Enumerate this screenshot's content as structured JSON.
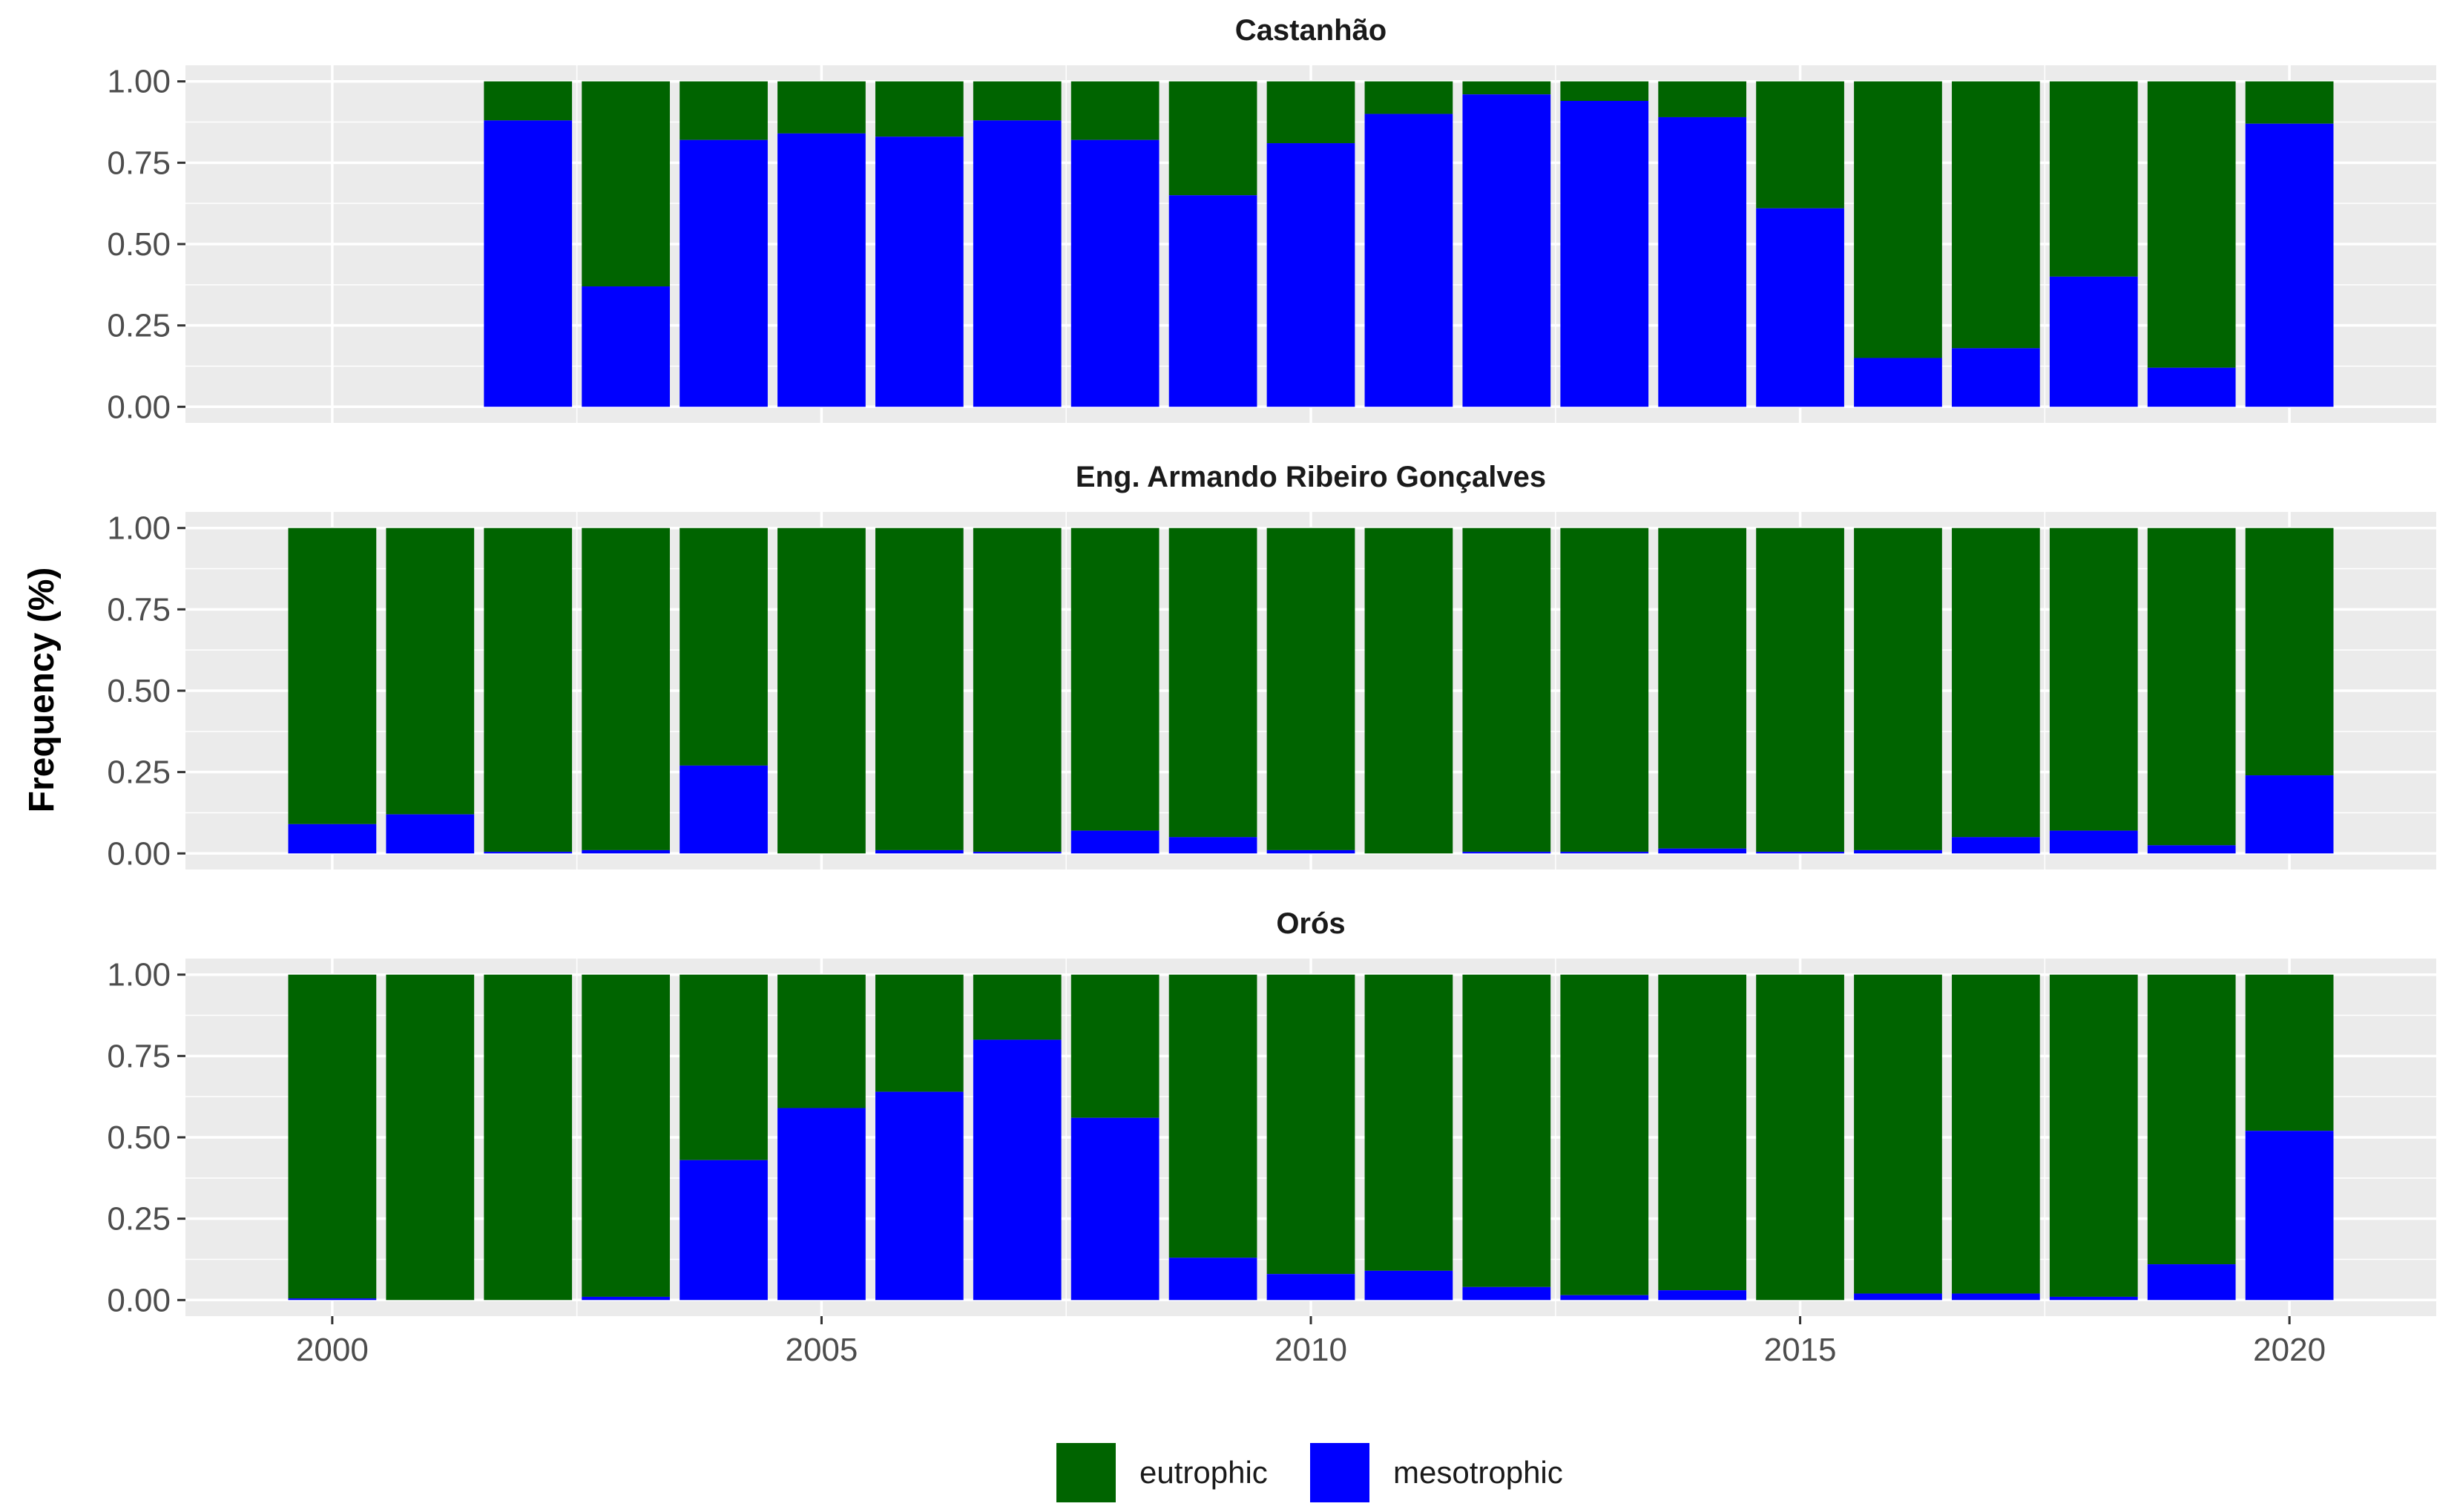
{
  "chart_data": {
    "type": "bar",
    "stacked": true,
    "ylabel": "Frequency (%)",
    "xlabel": "",
    "x_ticks": [
      2000,
      2005,
      2010,
      2015,
      2020
    ],
    "y_ticks": [
      "0.00",
      "0.25",
      "0.50",
      "0.75",
      "1.00"
    ],
    "ylim": [
      0,
      1
    ],
    "xlim": [
      1998.5,
      2021.5
    ],
    "grid": true,
    "legend_position": "bottom",
    "colors": {
      "eutrophic": "#006400",
      "mesotrophic": "#0000ff"
    },
    "legend": [
      {
        "key": "eutrophic",
        "label": "eutrophic"
      },
      {
        "key": "mesotrophic",
        "label": "mesotrophic"
      }
    ],
    "panels": [
      {
        "title": "Castanhão",
        "years": [
          2002,
          2003,
          2004,
          2005,
          2006,
          2007,
          2008,
          2009,
          2010,
          2011,
          2012,
          2013,
          2014,
          2015,
          2016,
          2017,
          2018,
          2019,
          2020
        ],
        "mesotrophic": [
          0.88,
          0.37,
          0.82,
          0.84,
          0.83,
          0.88,
          0.82,
          0.65,
          0.81,
          0.9,
          0.96,
          0.94,
          0.89,
          0.61,
          0.15,
          0.18,
          0.4,
          0.12,
          0.87
        ]
      },
      {
        "title": "Eng. Armando Ribeiro Gonçalves",
        "years": [
          2000,
          2001,
          2002,
          2003,
          2004,
          2005,
          2006,
          2007,
          2008,
          2009,
          2010,
          2011,
          2012,
          2013,
          2014,
          2015,
          2016,
          2017,
          2018,
          2019,
          2020
        ],
        "mesotrophic": [
          0.09,
          0.12,
          0.005,
          0.01,
          0.27,
          0.0,
          0.01,
          0.005,
          0.07,
          0.05,
          0.01,
          0.0,
          0.005,
          0.005,
          0.015,
          0.005,
          0.01,
          0.05,
          0.07,
          0.025,
          0.24
        ]
      },
      {
        "title": "Orós",
        "years": [
          2000,
          2001,
          2002,
          2003,
          2004,
          2005,
          2006,
          2007,
          2008,
          2009,
          2010,
          2011,
          2012,
          2013,
          2014,
          2015,
          2016,
          2017,
          2018,
          2019,
          2020
        ],
        "mesotrophic": [
          0.005,
          0.0,
          0.0,
          0.01,
          0.43,
          0.59,
          0.64,
          0.8,
          0.56,
          0.13,
          0.08,
          0.09,
          0.04,
          0.015,
          0.03,
          0.0,
          0.02,
          0.02,
          0.01,
          0.11,
          0.52
        ]
      }
    ]
  }
}
